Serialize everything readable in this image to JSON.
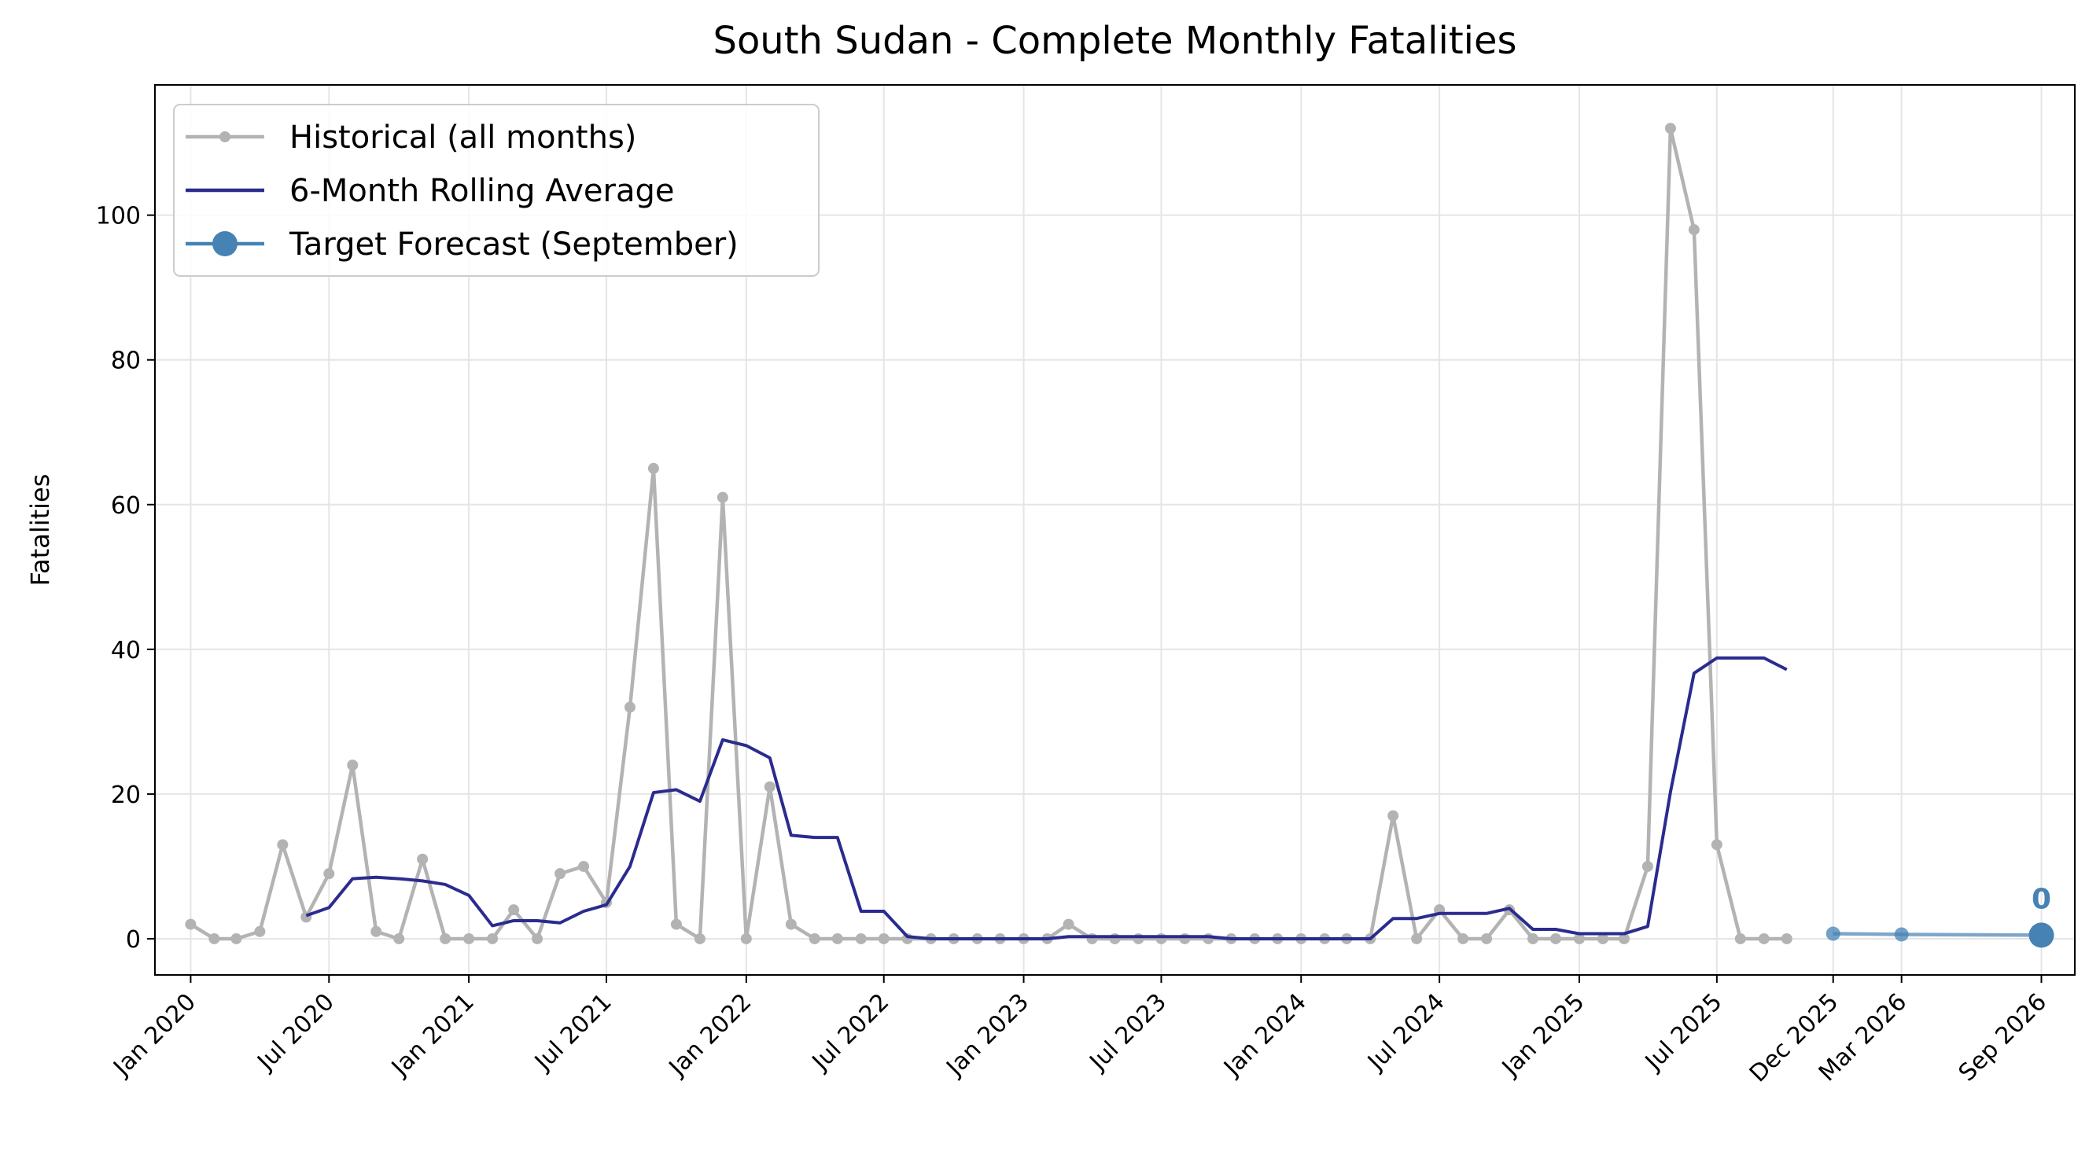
{
  "chart_data": {
    "type": "line",
    "title": "South Sudan - Complete Monthly Fatalities",
    "xlabel": "",
    "ylabel": "Fatalities",
    "ylim": [
      -5,
      118
    ],
    "yticks": [
      0,
      20,
      40,
      60,
      80,
      100
    ],
    "xlim": [
      "2019-11-15",
      "2026-10-15"
    ],
    "xticks": [
      {
        "date": "2020-01-01",
        "label": "Jan 2020"
      },
      {
        "date": "2020-07-01",
        "label": "Jul 2020"
      },
      {
        "date": "2021-01-01",
        "label": "Jan 2021"
      },
      {
        "date": "2021-07-01",
        "label": "Jul 2021"
      },
      {
        "date": "2022-01-01",
        "label": "Jan 2022"
      },
      {
        "date": "2022-07-01",
        "label": "Jul 2022"
      },
      {
        "date": "2023-01-01",
        "label": "Jan 2023"
      },
      {
        "date": "2023-07-01",
        "label": "Jul 2023"
      },
      {
        "date": "2024-01-01",
        "label": "Jan 2024"
      },
      {
        "date": "2024-07-01",
        "label": "Jul 2024"
      },
      {
        "date": "2025-01-01",
        "label": "Jan 2025"
      },
      {
        "date": "2025-07-01",
        "label": "Jul 2025"
      },
      {
        "date": "2025-12-01",
        "label": "Dec 2025"
      },
      {
        "date": "2026-03-01",
        "label": "Mar 2026"
      },
      {
        "date": "2026-09-01",
        "label": "Sep 2026"
      }
    ],
    "grid": true,
    "legend_position": "top-left",
    "colors": {
      "historical": "#b3b3b3",
      "rolling": "#2b2b8f",
      "forecast": "#4682b4"
    },
    "series": [
      {
        "name": "Historical (all months)",
        "start": "2020-01",
        "values": [
          2,
          0,
          0,
          1,
          13,
          3,
          9,
          24,
          1,
          0,
          11,
          0,
          0,
          0,
          4,
          0,
          9,
          10,
          5,
          32,
          65,
          2,
          0,
          61,
          0,
          21,
          2,
          0,
          0,
          0,
          0,
          0,
          0,
          0,
          0,
          0,
          0,
          0,
          2,
          0,
          0,
          0,
          0,
          0,
          0,
          0,
          0,
          0,
          0,
          0,
          0,
          0,
          17,
          0,
          4,
          0,
          0,
          4,
          0,
          0,
          0,
          0,
          0,
          10,
          112,
          98,
          13,
          0,
          0,
          0
        ]
      },
      {
        "name": "6-Month Rolling Average",
        "start": "2020-06",
        "values": [
          3.2,
          4.3,
          8.3,
          8.5,
          8.3,
          8.0,
          7.5,
          6.0,
          1.8,
          2.5,
          2.5,
          2.2,
          3.8,
          4.7,
          10,
          20.2,
          20.6,
          19,
          27.5,
          26.7,
          25,
          14.3,
          14,
          14,
          3.8,
          3.8,
          0.3,
          0,
          0,
          0,
          0,
          0,
          0,
          0.3,
          0.3,
          0.3,
          0.3,
          0.3,
          0.3,
          0.3,
          0,
          0,
          0,
          0,
          0,
          0,
          0,
          2.8,
          2.8,
          3.5,
          3.5,
          3.5,
          4.2,
          1.3,
          1.3,
          0.7,
          0.7,
          0.7,
          1.7,
          20.3,
          36.7,
          38.8,
          38.8,
          38.8,
          37.2
        ]
      },
      {
        "name": "Target Forecast (September)",
        "points": [
          {
            "date": "2025-12-01",
            "value": 0.7
          },
          {
            "date": "2026-03-01",
            "value": 0.6
          },
          {
            "date": "2026-09-01",
            "value": 0.5
          }
        ]
      }
    ],
    "annotations": [
      {
        "date": "2026-09-01",
        "value": 0.5,
        "text": "0"
      }
    ]
  }
}
